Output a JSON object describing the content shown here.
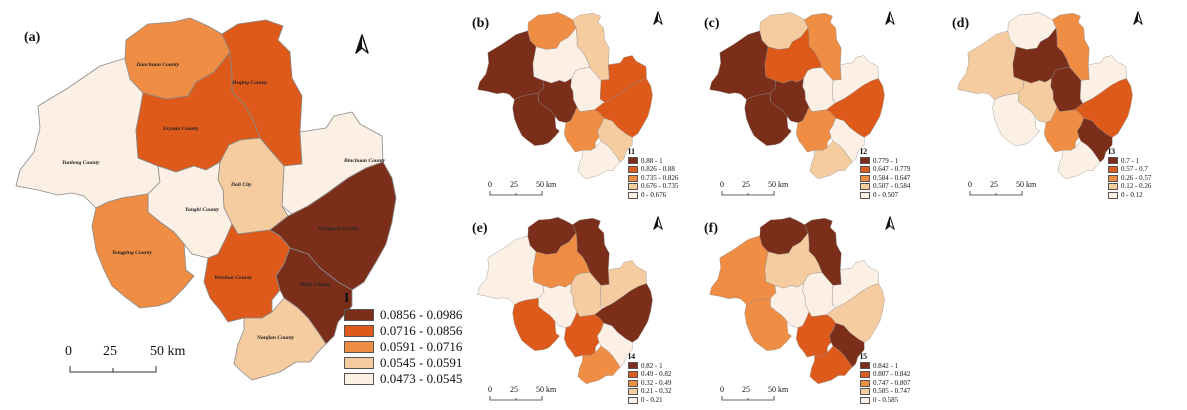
{
  "colors": {
    "c5": "#7b2f1b",
    "c4": "#dd5a1a",
    "c3": "#f08d45",
    "c2": "#f5cba0",
    "c1": "#fcefe4",
    "border": "#8a8a8a"
  },
  "scale_labels": [
    "0",
    "25",
    "50 km"
  ],
  "main": {
    "label": "(a)",
    "legend_title": "I",
    "legend": [
      "0.0856 - 0.0986",
      "0.0716 - 0.0856",
      "0.0591 - 0.0716",
      "0.0545 - 0.0591",
      "0.0473 - 0.0545"
    ],
    "counties": {
      "jianchuan": "Jianchuan County",
      "heqing": "Heqing County",
      "eryuan": "Eryuan County",
      "yunlong": "Yunlong County",
      "binchuan": "Binchuan County",
      "dali": "Dali City",
      "yangbi": "Yangbi County",
      "xiangyun": "Xiangyun County",
      "yongping": "Yongping County",
      "weishan": "Weishan County",
      "midu": "Midu County",
      "nanjian": "Nanjian County"
    },
    "classes": {
      "jianchuan": 3,
      "heqing": 4,
      "eryuan": 4,
      "yunlong": 1,
      "binchuan": 1,
      "dali": 2,
      "yangbi": 1,
      "xiangyun": 5,
      "yongping": 3,
      "weishan": 4,
      "midu": 5,
      "nanjian": 2
    }
  },
  "panels": [
    {
      "label": "(b)",
      "legend_title": "I1",
      "legend": [
        "0.88 - 1",
        "0.826 - 0.88",
        "0.735 - 0.826",
        "0.676 - 0.735",
        "0 - 0.676"
      ],
      "classes": {
        "jianchuan": 3,
        "heqing": 2,
        "eryuan": 1,
        "yunlong": 5,
        "binchuan": 4,
        "dali": 1,
        "yangbi": 5,
        "xiangyun": 4,
        "yongping": 5,
        "weishan": 3,
        "midu": 2,
        "nanjian": 1
      }
    },
    {
      "label": "(c)",
      "legend_title": "I2",
      "legend": [
        "0.779 - 1",
        "0.647 - 0.779",
        "0.584 - 0.647",
        "0.507 - 0.584",
        "0 - 0.507"
      ],
      "classes": {
        "jianchuan": 2,
        "heqing": 3,
        "eryuan": 4,
        "yunlong": 5,
        "binchuan": 1,
        "dali": 1,
        "yangbi": 5,
        "xiangyun": 4,
        "yongping": 5,
        "weishan": 3,
        "midu": 1,
        "nanjian": 2
      }
    },
    {
      "label": "(d)",
      "legend_title": "I3",
      "legend": [
        "0.7 - 1",
        "0.57 - 0.7",
        "0.26 - 0.57",
        "0.12 - 0.26",
        "0 - 0.12"
      ],
      "classes": {
        "jianchuan": 1,
        "heqing": 3,
        "eryuan": 5,
        "yunlong": 2,
        "binchuan": 1,
        "dali": 5,
        "yangbi": 2,
        "xiangyun": 4,
        "yongping": 1,
        "weishan": 3,
        "midu": 5,
        "nanjian": 1
      }
    },
    {
      "label": "(e)",
      "legend_title": "I4",
      "legend": [
        "0.82 - 1",
        "0.49 - 0.82",
        "0.32 - 0.49",
        "0.21 - 0.32",
        "0 - 0.21"
      ],
      "classes": {
        "jianchuan": 5,
        "heqing": 5,
        "eryuan": 3,
        "yunlong": 1,
        "binchuan": 2,
        "dali": 2,
        "yangbi": 1,
        "xiangyun": 5,
        "yongping": 4,
        "weishan": 4,
        "midu": 1,
        "nanjian": 3
      }
    },
    {
      "label": "(f)",
      "legend_title": "I5",
      "legend": [
        "0.842 - 1",
        "0.807 - 0.842",
        "0.747 - 0.807",
        "0.585 - 0.747",
        "0 - 0.585"
      ],
      "classes": {
        "jianchuan": 5,
        "heqing": 5,
        "eryuan": 2,
        "yunlong": 3,
        "binchuan": 1,
        "dali": 1,
        "yangbi": 1,
        "xiangyun": 2,
        "yongping": 3,
        "weishan": 4,
        "midu": 5,
        "nanjian": 4
      }
    }
  ]
}
